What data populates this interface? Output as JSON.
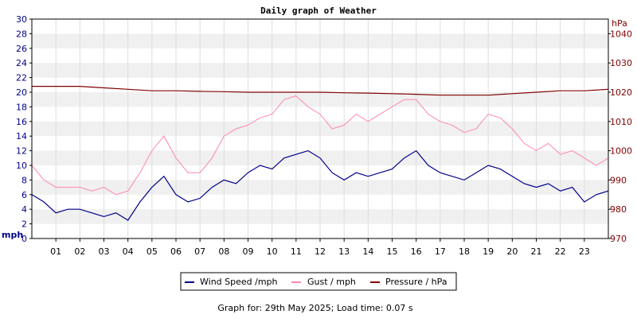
{
  "chart_data": {
    "type": "line",
    "title": "Daily graph of Weather",
    "footer": "Graph for: 29th May 2025; Load time: 0.07 s",
    "left_axis": {
      "unit": "mph",
      "ylim": [
        0,
        30
      ],
      "ticks": [
        "0",
        "2",
        "4",
        "6",
        "8",
        "10",
        "12",
        "14",
        "16",
        "18",
        "20",
        "22",
        "24",
        "26",
        "28",
        "30"
      ]
    },
    "right_axis": {
      "unit": "hPa",
      "ylim": [
        970,
        1045
      ],
      "ticks": [
        "970",
        "980",
        "990",
        "1000",
        "1010",
        "1020",
        "1030",
        "1040"
      ]
    },
    "x_axis": {
      "xlim": [
        0,
        24
      ],
      "ticks": [
        "01",
        "02",
        "03",
        "04",
        "05",
        "06",
        "07",
        "08",
        "09",
        "10",
        "11",
        "12",
        "13",
        "14",
        "15",
        "16",
        "17",
        "18",
        "19",
        "20",
        "21",
        "22",
        "23"
      ]
    },
    "grid": true,
    "legend_position": "bottom",
    "series": [
      {
        "name": "Wind Speed /mph",
        "axis": "left",
        "color": "#00008b",
        "x": [
          0,
          0.5,
          1,
          1.5,
          2,
          2.5,
          3,
          3.5,
          4,
          4.5,
          5,
          5.5,
          6,
          6.5,
          7,
          7.5,
          8,
          8.5,
          9,
          9.5,
          10,
          10.5,
          11,
          11.5,
          12,
          12.5,
          13,
          13.5,
          14,
          14.5,
          15,
          15.5,
          16,
          16.5,
          17,
          17.5,
          18,
          18.5,
          19,
          19.5,
          20,
          20.5,
          21,
          21.5,
          22,
          22.5,
          23,
          23.5,
          24
        ],
        "values": [
          6,
          5,
          3.5,
          4,
          4,
          3.5,
          3,
          3.5,
          2.5,
          5,
          7,
          8.5,
          6,
          5,
          5.5,
          7,
          8,
          7.5,
          9,
          10,
          9.5,
          11,
          11.5,
          12,
          11,
          9,
          8,
          9,
          8.5,
          9,
          9.5,
          11,
          12,
          10,
          9,
          8.5,
          8,
          9,
          10,
          9.5,
          8.5,
          7.5,
          7,
          7.5,
          6.5,
          7,
          5,
          6,
          6.5
        ]
      },
      {
        "name": "Gust / mph",
        "axis": "left",
        "color": "#ff88aa",
        "x": [
          0,
          0.5,
          1,
          1.5,
          2,
          2.5,
          3,
          3.5,
          4,
          4.5,
          5,
          5.5,
          6,
          6.5,
          7,
          7.5,
          8,
          8.5,
          9,
          9.5,
          10,
          10.5,
          11,
          11.5,
          12,
          12.5,
          13,
          13.5,
          14,
          14.5,
          15,
          15.5,
          16,
          16.5,
          17,
          17.5,
          18,
          18.5,
          19,
          19.5,
          20,
          20.5,
          21,
          21.5,
          22,
          22.5,
          23,
          23.5,
          24
        ],
        "values": [
          10,
          8,
          7,
          7,
          7,
          6.5,
          7,
          6,
          6.5,
          9,
          12,
          14,
          11,
          9,
          9,
          11,
          14,
          15,
          15.5,
          16.5,
          17,
          19,
          19.5,
          18,
          17,
          15,
          15.5,
          17,
          16,
          17,
          18,
          19,
          19,
          17,
          16,
          15.5,
          14.5,
          15,
          17,
          16.5,
          15,
          13,
          12,
          13,
          11.5,
          12,
          11,
          10,
          11
        ]
      },
      {
        "name": "Pressure / hPa",
        "axis": "right",
        "color": "#800000",
        "x": [
          0,
          1,
          2,
          3,
          4,
          5,
          6,
          7,
          8,
          9,
          10,
          11,
          12,
          13,
          14,
          15,
          16,
          17,
          18,
          19,
          20,
          21,
          22,
          23,
          24
        ],
        "values": [
          1022,
          1022,
          1022,
          1021.5,
          1021,
          1020.5,
          1020.5,
          1020.3,
          1020.2,
          1020,
          1020,
          1020,
          1020,
          1019.8,
          1019.7,
          1019.5,
          1019.3,
          1019,
          1019,
          1019,
          1019.5,
          1020,
          1020.5,
          1020.5,
          1021
        ]
      }
    ]
  }
}
